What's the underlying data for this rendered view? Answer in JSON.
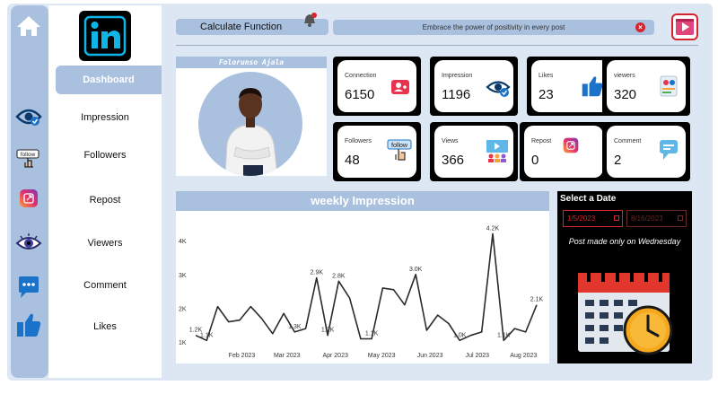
{
  "header": {
    "title": "Calculate Function",
    "quote": "Embrace the power of positivity in every post"
  },
  "nav": {
    "items": [
      {
        "label": "Dashboard"
      },
      {
        "label": "Impression"
      },
      {
        "label": "Followers"
      },
      {
        "label": "Repost"
      },
      {
        "label": "Viewers"
      },
      {
        "label": "Comment"
      },
      {
        "label": "Likes"
      }
    ]
  },
  "rail_icons": [
    "home-icon",
    "eye-icon",
    "follow-icon",
    "repost-icon",
    "viewers-eye-icon",
    "comment-icon",
    "like-icon"
  ],
  "profile": {
    "name": "Folorunso Ajala"
  },
  "stats": [
    {
      "label": "Connection",
      "value": "6150",
      "icon": "add-user-icon"
    },
    {
      "label": "Impression",
      "value": "1196",
      "icon": "eye-check-icon"
    },
    {
      "label": "Likes",
      "value": "23",
      "icon": "thumbs-up-icon"
    },
    {
      "label": "viewers",
      "value": "320",
      "icon": "viewers-icon"
    },
    {
      "label": "Followers",
      "value": "48",
      "icon": "follow-icon"
    },
    {
      "label": "Views",
      "value": "366",
      "icon": "views-icon"
    },
    {
      "label": "Repost",
      "value": "0",
      "icon": "repost-icon"
    },
    {
      "label": "Comment",
      "value": "2",
      "icon": "comment-icon"
    }
  ],
  "date_filter": {
    "title": "Select a Date",
    "start": "1/5/2023",
    "end": "8/16/2023",
    "note": "Post made only on Wednesday"
  },
  "colors": {
    "accent": "#a9c1df",
    "background": "#dde7f3",
    "red": "#d6232c",
    "linkedin": "#0a66c2"
  },
  "chart_data": {
    "type": "line",
    "title": "weekly Impression",
    "xlabel": "",
    "ylabel": "",
    "ylim": [
      900,
      4400
    ],
    "yticks": [
      1000,
      2000,
      3000,
      4000
    ],
    "ytick_labels": [
      "1K",
      "2K",
      "3K",
      "4K"
    ],
    "xtick_labels": [
      {
        "label": "Feb 2023",
        "x": 4.2
      },
      {
        "label": "Mar 2023",
        "x": 8.3
      },
      {
        "label": "Apr 2023",
        "x": 12.7
      },
      {
        "label": "May 2023",
        "x": 16.9
      },
      {
        "label": "Jun 2023",
        "x": 21.3
      },
      {
        "label": "Jul 2023",
        "x": 25.6
      },
      {
        "label": "Aug 2023",
        "x": 29.8
      }
    ],
    "series": [
      {
        "x": [
          0,
          1,
          2,
          3,
          4,
          5,
          6,
          7,
          8,
          9,
          10,
          11,
          12,
          13,
          14,
          15,
          16,
          17,
          18,
          19,
          20,
          21,
          22,
          23,
          24,
          25,
          26,
          27,
          28,
          29,
          30,
          31
        ],
        "values": [
          1200,
          1050,
          2050,
          1600,
          1650,
          2050,
          1700,
          1250,
          1850,
          1300,
          1400,
          2900,
          1200,
          2800,
          2300,
          1100,
          1100,
          2600,
          2550,
          2100,
          3000,
          1350,
          1800,
          1550,
          1050,
          1200,
          1300,
          4200,
          1050,
          1400,
          1300,
          2100
        ]
      }
    ],
    "data_labels": [
      {
        "i": 0,
        "text": "1.2K"
      },
      {
        "i": 1,
        "text": "1.1K"
      },
      {
        "i": 9,
        "text": "1.3K"
      },
      {
        "i": 11,
        "text": "2.9K"
      },
      {
        "i": 12,
        "text": "1.2K"
      },
      {
        "i": 13,
        "text": "2.8K"
      },
      {
        "i": 16,
        "text": "1.1K"
      },
      {
        "i": 20,
        "text": "3.0K"
      },
      {
        "i": 24,
        "text": "1.0K"
      },
      {
        "i": 27,
        "text": "4.2K"
      },
      {
        "i": 28,
        "text": "1.1K"
      },
      {
        "i": 31,
        "text": "2.1K"
      }
    ],
    "grid": false
  }
}
